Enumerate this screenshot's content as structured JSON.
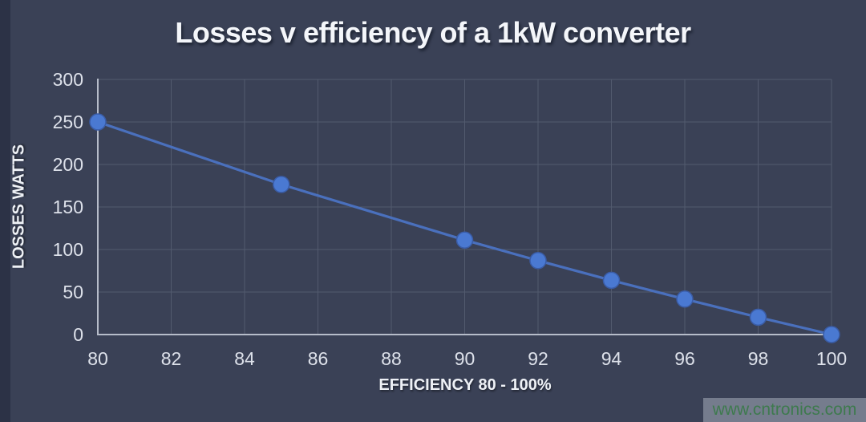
{
  "page": {
    "title": "Losses v efficiency of a 1kW converter",
    "watermark": "www.cntronics.com"
  },
  "chart_data": {
    "type": "line",
    "title": "Losses v efficiency of a 1kW converter",
    "xlabel": "EFFICIENCY 80 - 100%",
    "ylabel": "LOSSES WATTS",
    "series": [
      {
        "name": "Losses",
        "x": [
          80,
          85,
          90,
          92,
          94,
          96,
          98,
          100
        ],
        "y": [
          250,
          176.5,
          111.1,
          87,
          63.8,
          41.7,
          20.4,
          0
        ]
      }
    ],
    "x_ticks": [
      80,
      82,
      84,
      86,
      88,
      90,
      92,
      94,
      96,
      98,
      100
    ],
    "y_ticks": [
      0,
      50,
      100,
      150,
      200,
      250,
      300
    ],
    "xlim": [
      80,
      100
    ],
    "ylim": [
      0,
      300
    ],
    "grid": true,
    "legend": false,
    "marker": "circle"
  },
  "colors": {
    "background": "#3a4156",
    "left_strip": "#2c3246",
    "grid_line": "#525a6e",
    "axis_line": "#b6bcc9",
    "tick_text": "#dde1ea",
    "series_line": "#4a70bd",
    "marker_fill": "#4a79d2",
    "marker_stroke": "#3a5ca6",
    "title_text": "#f4f6fa",
    "watermark_bg": "#adb3c0",
    "watermark_text": "#3e7a4e"
  }
}
